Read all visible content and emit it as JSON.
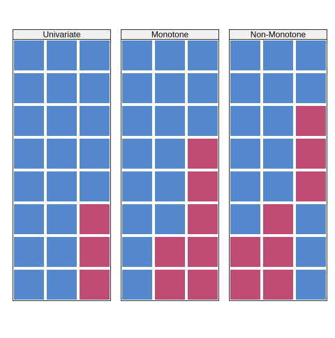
{
  "chart_data": {
    "type": "heatmap",
    "colors": {
      "blue": "#5588cc",
      "pink": "#c04c76"
    },
    "panels": [
      {
        "title": "Univariate",
        "rows": [
          [
            "blue",
            "blue",
            "blue"
          ],
          [
            "blue",
            "blue",
            "blue"
          ],
          [
            "blue",
            "blue",
            "blue"
          ],
          [
            "blue",
            "blue",
            "blue"
          ],
          [
            "blue",
            "blue",
            "blue"
          ],
          [
            "blue",
            "blue",
            "pink"
          ],
          [
            "blue",
            "blue",
            "pink"
          ],
          [
            "blue",
            "blue",
            "pink"
          ]
        ]
      },
      {
        "title": "Monotone",
        "rows": [
          [
            "blue",
            "blue",
            "blue"
          ],
          [
            "blue",
            "blue",
            "blue"
          ],
          [
            "blue",
            "blue",
            "blue"
          ],
          [
            "blue",
            "blue",
            "pink"
          ],
          [
            "blue",
            "blue",
            "pink"
          ],
          [
            "blue",
            "blue",
            "pink"
          ],
          [
            "blue",
            "pink",
            "pink"
          ],
          [
            "blue",
            "pink",
            "pink"
          ]
        ]
      },
      {
        "title": "Non-Monotone",
        "rows": [
          [
            "blue",
            "blue",
            "blue"
          ],
          [
            "blue",
            "blue",
            "blue"
          ],
          [
            "blue",
            "blue",
            "pink"
          ],
          [
            "blue",
            "blue",
            "pink"
          ],
          [
            "blue",
            "blue",
            "pink"
          ],
          [
            "blue",
            "pink",
            "blue"
          ],
          [
            "pink",
            "pink",
            "blue"
          ],
          [
            "pink",
            "pink",
            "blue"
          ]
        ]
      }
    ]
  }
}
